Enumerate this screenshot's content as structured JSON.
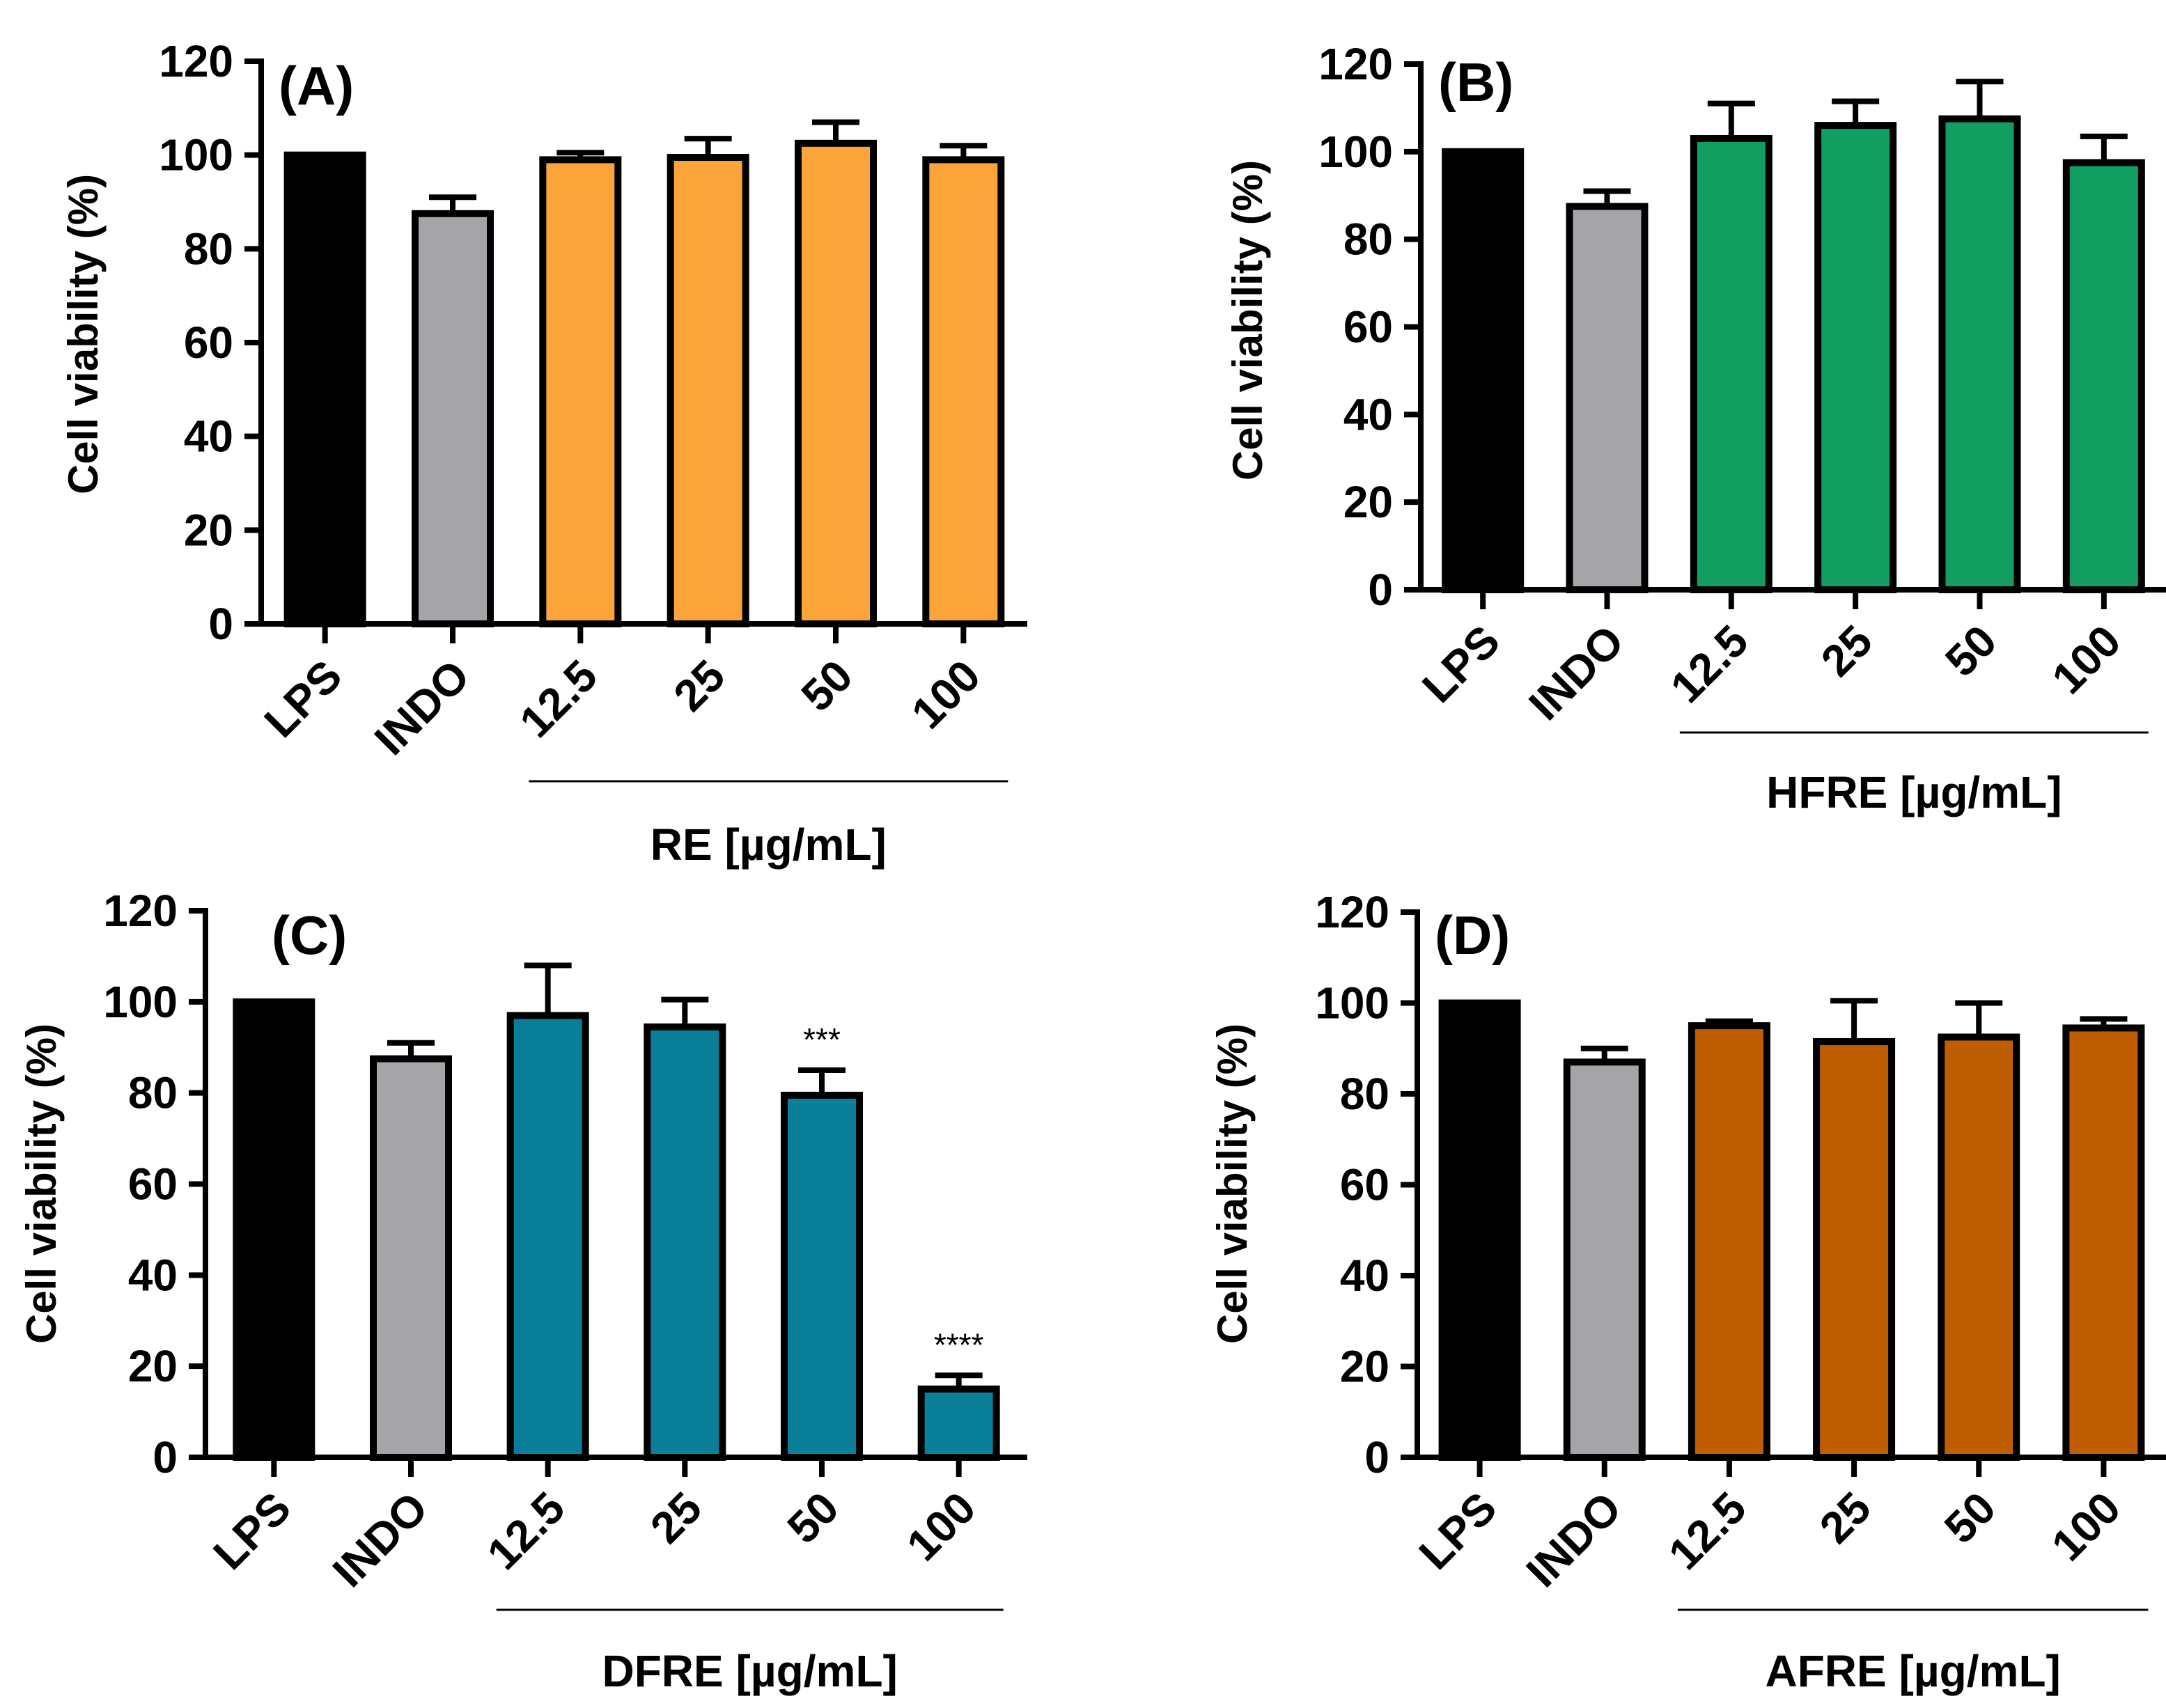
{
  "chart_data": [
    {
      "type": "bar",
      "panel_label": "(A)",
      "ylabel": "Cell viability (%)",
      "ylim": [
        0,
        120
      ],
      "yticks": [
        "0",
        "20",
        "40",
        "60",
        "80",
        "100",
        "120"
      ],
      "categories": [
        "LPS",
        "INDO",
        "12.5",
        "25",
        "50",
        "100"
      ],
      "values": [
        100,
        87.5,
        99,
        99.5,
        102.5,
        99
      ],
      "errors": [
        0,
        3.5,
        1.5,
        4,
        4.5,
        3
      ],
      "colors": [
        "#000000",
        "#A5A4A9",
        "#FAA43A",
        "#FAA43A",
        "#FAA43A",
        "#FAA43A"
      ],
      "annotations": [
        "",
        "",
        "",
        "",
        "",
        ""
      ],
      "group_label": "RE [µg/mL]",
      "group_span": [
        2,
        5
      ]
    },
    {
      "type": "bar",
      "panel_label": "(B)",
      "ylabel": "Cell viability (%)",
      "ylim": [
        0,
        120
      ],
      "yticks": [
        "0",
        "20",
        "40",
        "60",
        "80",
        "100",
        "120"
      ],
      "categories": [
        "LPS",
        "INDO",
        "12.5",
        "25",
        "50",
        "100"
      ],
      "values": [
        100,
        87.5,
        103,
        106,
        107.5,
        97.5
      ],
      "errors": [
        0,
        3.5,
        8,
        5.5,
        8.5,
        6
      ],
      "colors": [
        "#000000",
        "#A5A4A9",
        "#119E60",
        "#119E60",
        "#119E60",
        "#119E60"
      ],
      "annotations": [
        "",
        "",
        "",
        "",
        "",
        ""
      ],
      "group_label": "HFRE [µg/mL]",
      "group_span": [
        2,
        5
      ]
    },
    {
      "type": "bar",
      "panel_label": "(C)",
      "ylabel": "Cell viability (%)",
      "ylim": [
        0,
        120
      ],
      "yticks": [
        "0",
        "20",
        "40",
        "60",
        "80",
        "100",
        "120"
      ],
      "categories": [
        "LPS",
        "INDO",
        "12.5",
        "25",
        "50",
        "100"
      ],
      "values": [
        100,
        87.5,
        97,
        94.5,
        79.5,
        15
      ],
      "errors": [
        0,
        3.5,
        11,
        6,
        5.5,
        3
      ],
      "colors": [
        "#000000",
        "#A5A4A9",
        "#0A7F99",
        "#0A7F99",
        "#0A7F99",
        "#0A7F99"
      ],
      "annotations": [
        "",
        "",
        "",
        "",
        "***",
        "****"
      ],
      "group_label": "DFRE [µg/mL]",
      "group_span": [
        2,
        5
      ]
    },
    {
      "type": "bar",
      "panel_label": "(D)",
      "ylabel": "Cell viability (%)",
      "ylim": [
        0,
        120
      ],
      "yticks": [
        "0",
        "20",
        "40",
        "60",
        "80",
        "100",
        "120"
      ],
      "categories": [
        "LPS",
        "INDO",
        "12.5",
        "25",
        "50",
        "100"
      ],
      "values": [
        100,
        87,
        95,
        91.5,
        92.5,
        94.5
      ],
      "errors": [
        0,
        3,
        1,
        9,
        7.5,
        2
      ],
      "colors": [
        "#000000",
        "#A5A4A9",
        "#BF5E00",
        "#BF5E00",
        "#BF5E00",
        "#BF5E00"
      ],
      "annotations": [
        "",
        "",
        "",
        "",
        "",
        ""
      ],
      "group_label": "AFRE [µg/mL]",
      "group_span": [
        2,
        5
      ]
    }
  ]
}
